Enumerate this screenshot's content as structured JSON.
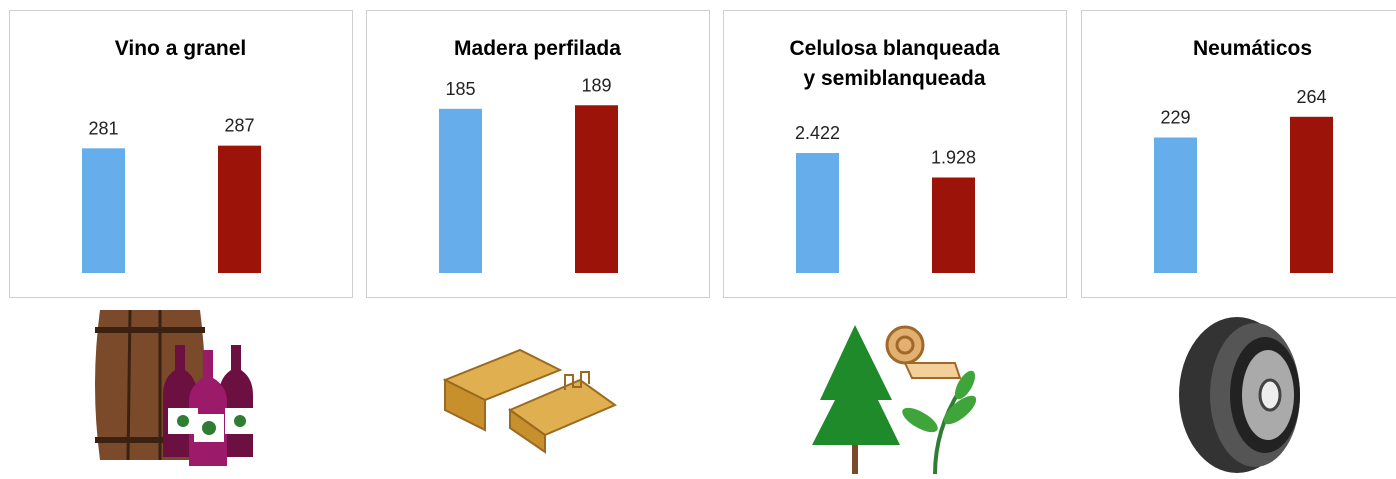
{
  "chart_data": [
    {
      "type": "bar",
      "title": "Vino a granel",
      "categories": [
        null,
        null
      ],
      "values": [
        281,
        287
      ],
      "colors": [
        "#65aeeb",
        "#9c1409"
      ],
      "ylim": [
        0,
        480
      ]
    },
    {
      "type": "bar",
      "title": "Madera perfilada",
      "categories": [
        null,
        null
      ],
      "values": [
        185,
        189
      ],
      "colors": [
        "#65aeeb",
        "#9c1409"
      ],
      "ylim": [
        0,
        240
      ]
    },
    {
      "type": "bar",
      "title": "Celulosa blanqueada\ny semiblanqueada",
      "categories": [
        null,
        null
      ],
      "values": [
        2422,
        1928
      ],
      "value_labels": [
        "2.422",
        "1.928"
      ],
      "colors": [
        "#65aeeb",
        "#9c1409"
      ],
      "ylim": [
        0,
        4300
      ]
    },
    {
      "type": "bar",
      "title": "Neumáticos",
      "categories": [
        null,
        null
      ],
      "values": [
        229,
        264
      ],
      "colors": [
        "#65aeeb",
        "#9c1409"
      ],
      "ylim": [
        0,
        360
      ]
    }
  ]
}
